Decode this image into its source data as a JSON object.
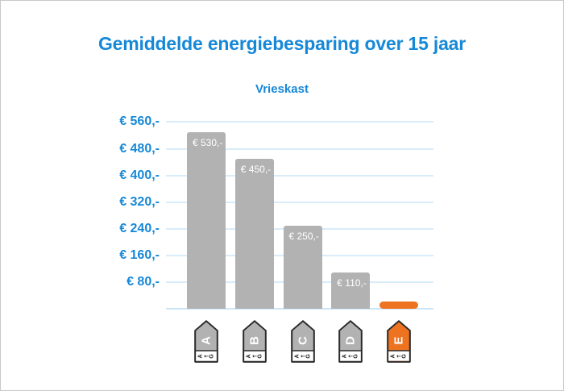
{
  "frame": {
    "background": "#ffffff",
    "border_color": "#c8c8c8"
  },
  "header": {
    "title": "Gemiddelde energiebesparing over 15 jaar",
    "subtitle": "Vrieskast"
  },
  "colors": {
    "accent_blue": "#1688d8",
    "gridline": "#d8ecfa",
    "axis_line": "#cde6f7",
    "bar_gray": "#b2b2b2",
    "bar_orange": "#ee7321",
    "bar_label_text": "#ffffff",
    "icon_border": "#2b2b2b",
    "icon_letter": "#ffffff",
    "icon_scale_text": "#222222"
  },
  "chart_data": {
    "type": "bar",
    "title": "Gemiddelde energiebesparing over 15 jaar",
    "subtitle": "Vrieskast",
    "categories": [
      "A",
      "B",
      "C",
      "D",
      "E"
    ],
    "values": [
      530,
      450,
      250,
      110,
      10
    ],
    "bar_labels": [
      "€ 530,-",
      "€ 450,-",
      "€ 250,-",
      "€ 110,-",
      ""
    ],
    "bar_colors": [
      "#b2b2b2",
      "#b2b2b2",
      "#b2b2b2",
      "#b2b2b2",
      "#ee7321"
    ],
    "y_ticks": [
      560,
      480,
      400,
      320,
      240,
      160,
      80
    ],
    "y_tick_labels": [
      "€ 560,-",
      "€ 480,-",
      "€ 400,-",
      "€ 320,-",
      "€ 240,-",
      "€ 160,-",
      "€ 80,-"
    ],
    "ylim": [
      0,
      575
    ],
    "xlabel": "",
    "ylabel": "",
    "grid": true,
    "legend": false,
    "currency": "EUR",
    "x_axis_icons": {
      "type": "energy-label-tag",
      "letters": [
        "A",
        "B",
        "C",
        "D",
        "E"
      ],
      "fill_colors": [
        "#b2b2b2",
        "#b2b2b2",
        "#b2b2b2",
        "#b2b2b2",
        "#ee7321"
      ],
      "letter_color": "#ffffff",
      "scale_chars": [
        "A",
        "←",
        "G"
      ]
    }
  }
}
